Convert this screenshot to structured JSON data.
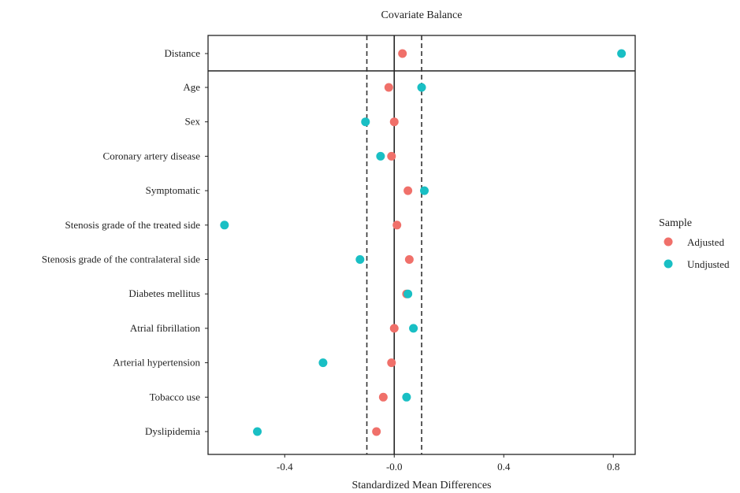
{
  "chart_data": {
    "type": "scatter",
    "title": "Covariate Balance",
    "xlabel": "Standardized Mean Differences",
    "ylabel": "",
    "xlim": [
      -0.68,
      0.88
    ],
    "xticks": [
      -0.4,
      0.0,
      0.4,
      0.8
    ],
    "xtick_labels": [
      "-0.4",
      "-0.0",
      "0.4",
      "0.8"
    ],
    "reference_lines": {
      "solid": 0.0,
      "dashed": [
        -0.1,
        0.1
      ]
    },
    "categories": [
      "Distance",
      "Age",
      "Sex",
      "Coronary artery disease",
      "Symptomatic",
      "Stenosis grade of the treated side",
      "Stenosis grade of the contralateral side",
      "Diabetes mellitus",
      "Atrial fibrillation",
      "Arterial hypertension",
      "Tobacco use",
      "Dyslipidemia"
    ],
    "series": [
      {
        "name": "Adjusted",
        "color": "#F0706A",
        "values": [
          0.03,
          -0.02,
          0.0,
          -0.01,
          0.05,
          0.01,
          0.055,
          0.045,
          0.0,
          -0.01,
          -0.04,
          -0.065
        ]
      },
      {
        "name": "Undjusted",
        "color": "#19BFC4",
        "values": [
          0.83,
          0.1,
          -0.105,
          -0.05,
          0.11,
          -0.62,
          -0.125,
          0.05,
          0.07,
          -0.26,
          0.045,
          -0.5
        ]
      }
    ],
    "legend": {
      "title": "Sample",
      "position": "right"
    },
    "grid": false
  }
}
